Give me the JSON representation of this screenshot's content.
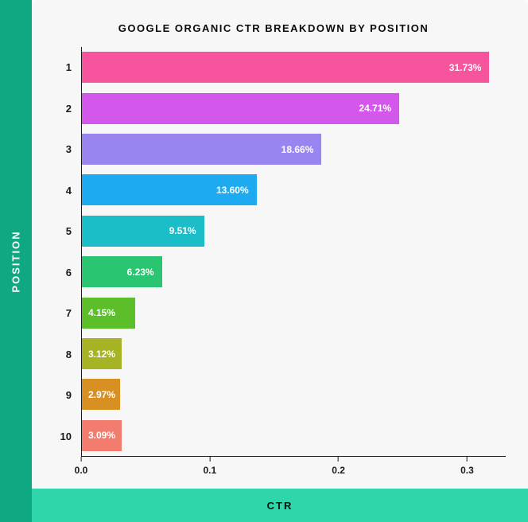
{
  "chart": {
    "type": "bar-horizontal",
    "title": "GOOGLE ORGANIC CTR BREAKDOWN BY POSITION",
    "title_fontsize": 13,
    "title_color": "#0b0b0b",
    "x_axis": {
      "label": "CTR",
      "min": 0.0,
      "max": 0.33,
      "ticks": [
        {
          "value": 0.0,
          "label": "0.0"
        },
        {
          "value": 0.1,
          "label": "0.1"
        },
        {
          "value": 0.2,
          "label": "0.2"
        },
        {
          "value": 0.3,
          "label": "0.3"
        }
      ],
      "tick_color": "#1a1a1a",
      "tick_fontsize": 12
    },
    "y_axis": {
      "label": "POSITION",
      "tick_fontsize": 13,
      "tick_color": "#1a1a1a"
    },
    "bars": [
      {
        "position": "1",
        "value": 0.3173,
        "label": "31.73%",
        "color": "#f6549c",
        "label_inside_right": true
      },
      {
        "position": "2",
        "value": 0.2471,
        "label": "24.71%",
        "color": "#d457ec",
        "label_inside_right": true
      },
      {
        "position": "3",
        "value": 0.1866,
        "label": "18.66%",
        "color": "#9a84ef",
        "label_inside_right": true
      },
      {
        "position": "4",
        "value": 0.136,
        "label": "13.60%",
        "color": "#1eaaf1",
        "label_inside_right": true
      },
      {
        "position": "5",
        "value": 0.0951,
        "label": "9.51%",
        "color": "#1bbdc6",
        "label_inside_right": true
      },
      {
        "position": "6",
        "value": 0.0623,
        "label": "6.23%",
        "color": "#29c571",
        "label_inside_right": true
      },
      {
        "position": "7",
        "value": 0.0415,
        "label": "4.15%",
        "color": "#5cbf2a",
        "label_inside_right": false
      },
      {
        "position": "8",
        "value": 0.0312,
        "label": "3.12%",
        "color": "#a5b324",
        "label_inside_right": false
      },
      {
        "position": "9",
        "value": 0.0297,
        "label": "2.97%",
        "color": "#d99022",
        "label_inside_right": false
      },
      {
        "position": "10",
        "value": 0.0309,
        "label": "3.09%",
        "color": "#f27d6f",
        "label_inside_right": false
      }
    ],
    "value_label_fontsize": 12,
    "value_label_color": "#ffffff",
    "bar_height_ratio": 0.76,
    "card_background": "#f7f7f7",
    "axis_color": "#1a1a1a"
  },
  "frame": {
    "left_rail_color": "#0fa883",
    "bottom_rail_color": "#2fd6a9",
    "rail_text_color_left": "#ffffff",
    "rail_text_color_bottom": "#111111"
  }
}
